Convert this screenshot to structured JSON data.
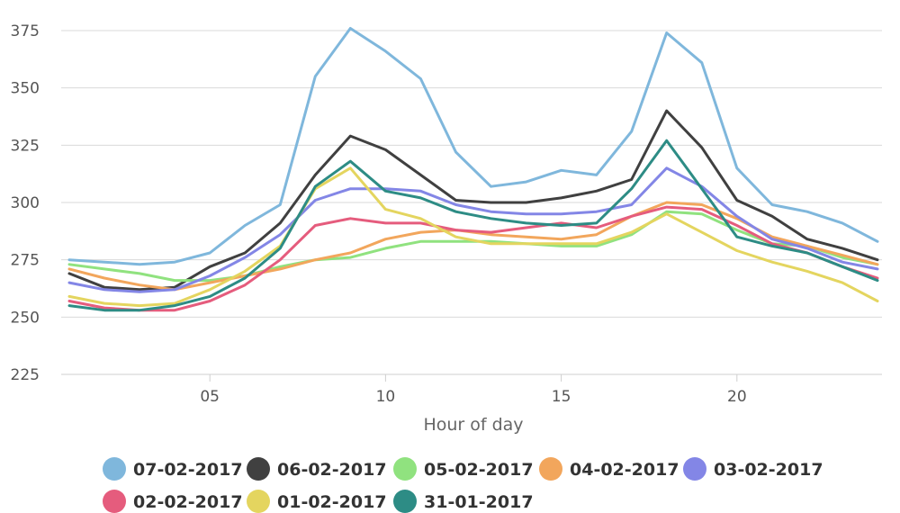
{
  "chart_data": {
    "type": "line",
    "title": "",
    "xlabel": "Hour of day",
    "ylabel": "",
    "xlim": [
      1,
      24
    ],
    "ylim": [
      225,
      375
    ],
    "x_ticks": [
      5,
      10,
      15,
      20
    ],
    "x_tick_labels": [
      "05",
      "10",
      "15",
      "20"
    ],
    "y_ticks": [
      225,
      250,
      275,
      300,
      325,
      350,
      375
    ],
    "y_tick_labels": [
      "225",
      "250",
      "275",
      "300",
      "325",
      "350",
      "375"
    ],
    "grid": true,
    "legend_position": "bottom",
    "x": [
      1,
      2,
      3,
      4,
      5,
      6,
      7,
      8,
      9,
      10,
      11,
      12,
      13,
      14,
      15,
      16,
      17,
      18,
      19,
      20,
      21,
      22,
      23,
      24
    ],
    "series": [
      {
        "name": "07-02-2017",
        "color": "#7fb7dc",
        "values": [
          275,
          274,
          273,
          274,
          278,
          290,
          299,
          355,
          376,
          366,
          354,
          322,
          307,
          309,
          314,
          312,
          331,
          374,
          361,
          315,
          299,
          296,
          291,
          283
        ]
      },
      {
        "name": "06-02-2017",
        "color": "#404040",
        "values": [
          269,
          263,
          262,
          263,
          272,
          278,
          291,
          312,
          329,
          323,
          312,
          301,
          300,
          300,
          302,
          305,
          310,
          340,
          324,
          301,
          294,
          284,
          280,
          275
        ]
      },
      {
        "name": "05-02-2017",
        "color": "#90e27f",
        "values": [
          273,
          271,
          269,
          266,
          266,
          268,
          272,
          275,
          276,
          280,
          283,
          283,
          283,
          282,
          281,
          281,
          286,
          296,
          295,
          288,
          282,
          281,
          276,
          273
        ]
      },
      {
        "name": "04-02-2017",
        "color": "#f2a65c",
        "values": [
          271,
          267,
          264,
          262,
          265,
          268,
          271,
          275,
          278,
          284,
          287,
          288,
          286,
          285,
          284,
          286,
          294,
          300,
          299,
          293,
          285,
          281,
          277,
          273
        ]
      },
      {
        "name": "03-02-2017",
        "color": "#8386e6",
        "values": [
          265,
          262,
          261,
          262,
          268,
          276,
          286,
          301,
          306,
          306,
          305,
          299,
          296,
          295,
          295,
          296,
          299,
          315,
          307,
          294,
          284,
          280,
          274,
          271
        ]
      },
      {
        "name": "02-02-2017",
        "color": "#e55c7d",
        "values": [
          257,
          254,
          253,
          253,
          257,
          264,
          275,
          290,
          293,
          291,
          291,
          288,
          287,
          289,
          291,
          289,
          294,
          298,
          297,
          290,
          282,
          278,
          272,
          267
        ]
      },
      {
        "name": "01-02-2017",
        "color": "#e4d55f",
        "values": [
          259,
          256,
          255,
          256,
          262,
          270,
          281,
          306,
          315,
          297,
          293,
          285,
          282,
          282,
          282,
          282,
          287,
          295,
          287,
          279,
          274,
          270,
          265,
          257
        ]
      },
      {
        "name": "31-01-2017",
        "color": "#2d8c85",
        "values": [
          255,
          253,
          253,
          255,
          259,
          267,
          280,
          307,
          318,
          305,
          302,
          296,
          293,
          291,
          290,
          291,
          306,
          327,
          306,
          285,
          281,
          278,
          272,
          266
        ]
      }
    ]
  }
}
